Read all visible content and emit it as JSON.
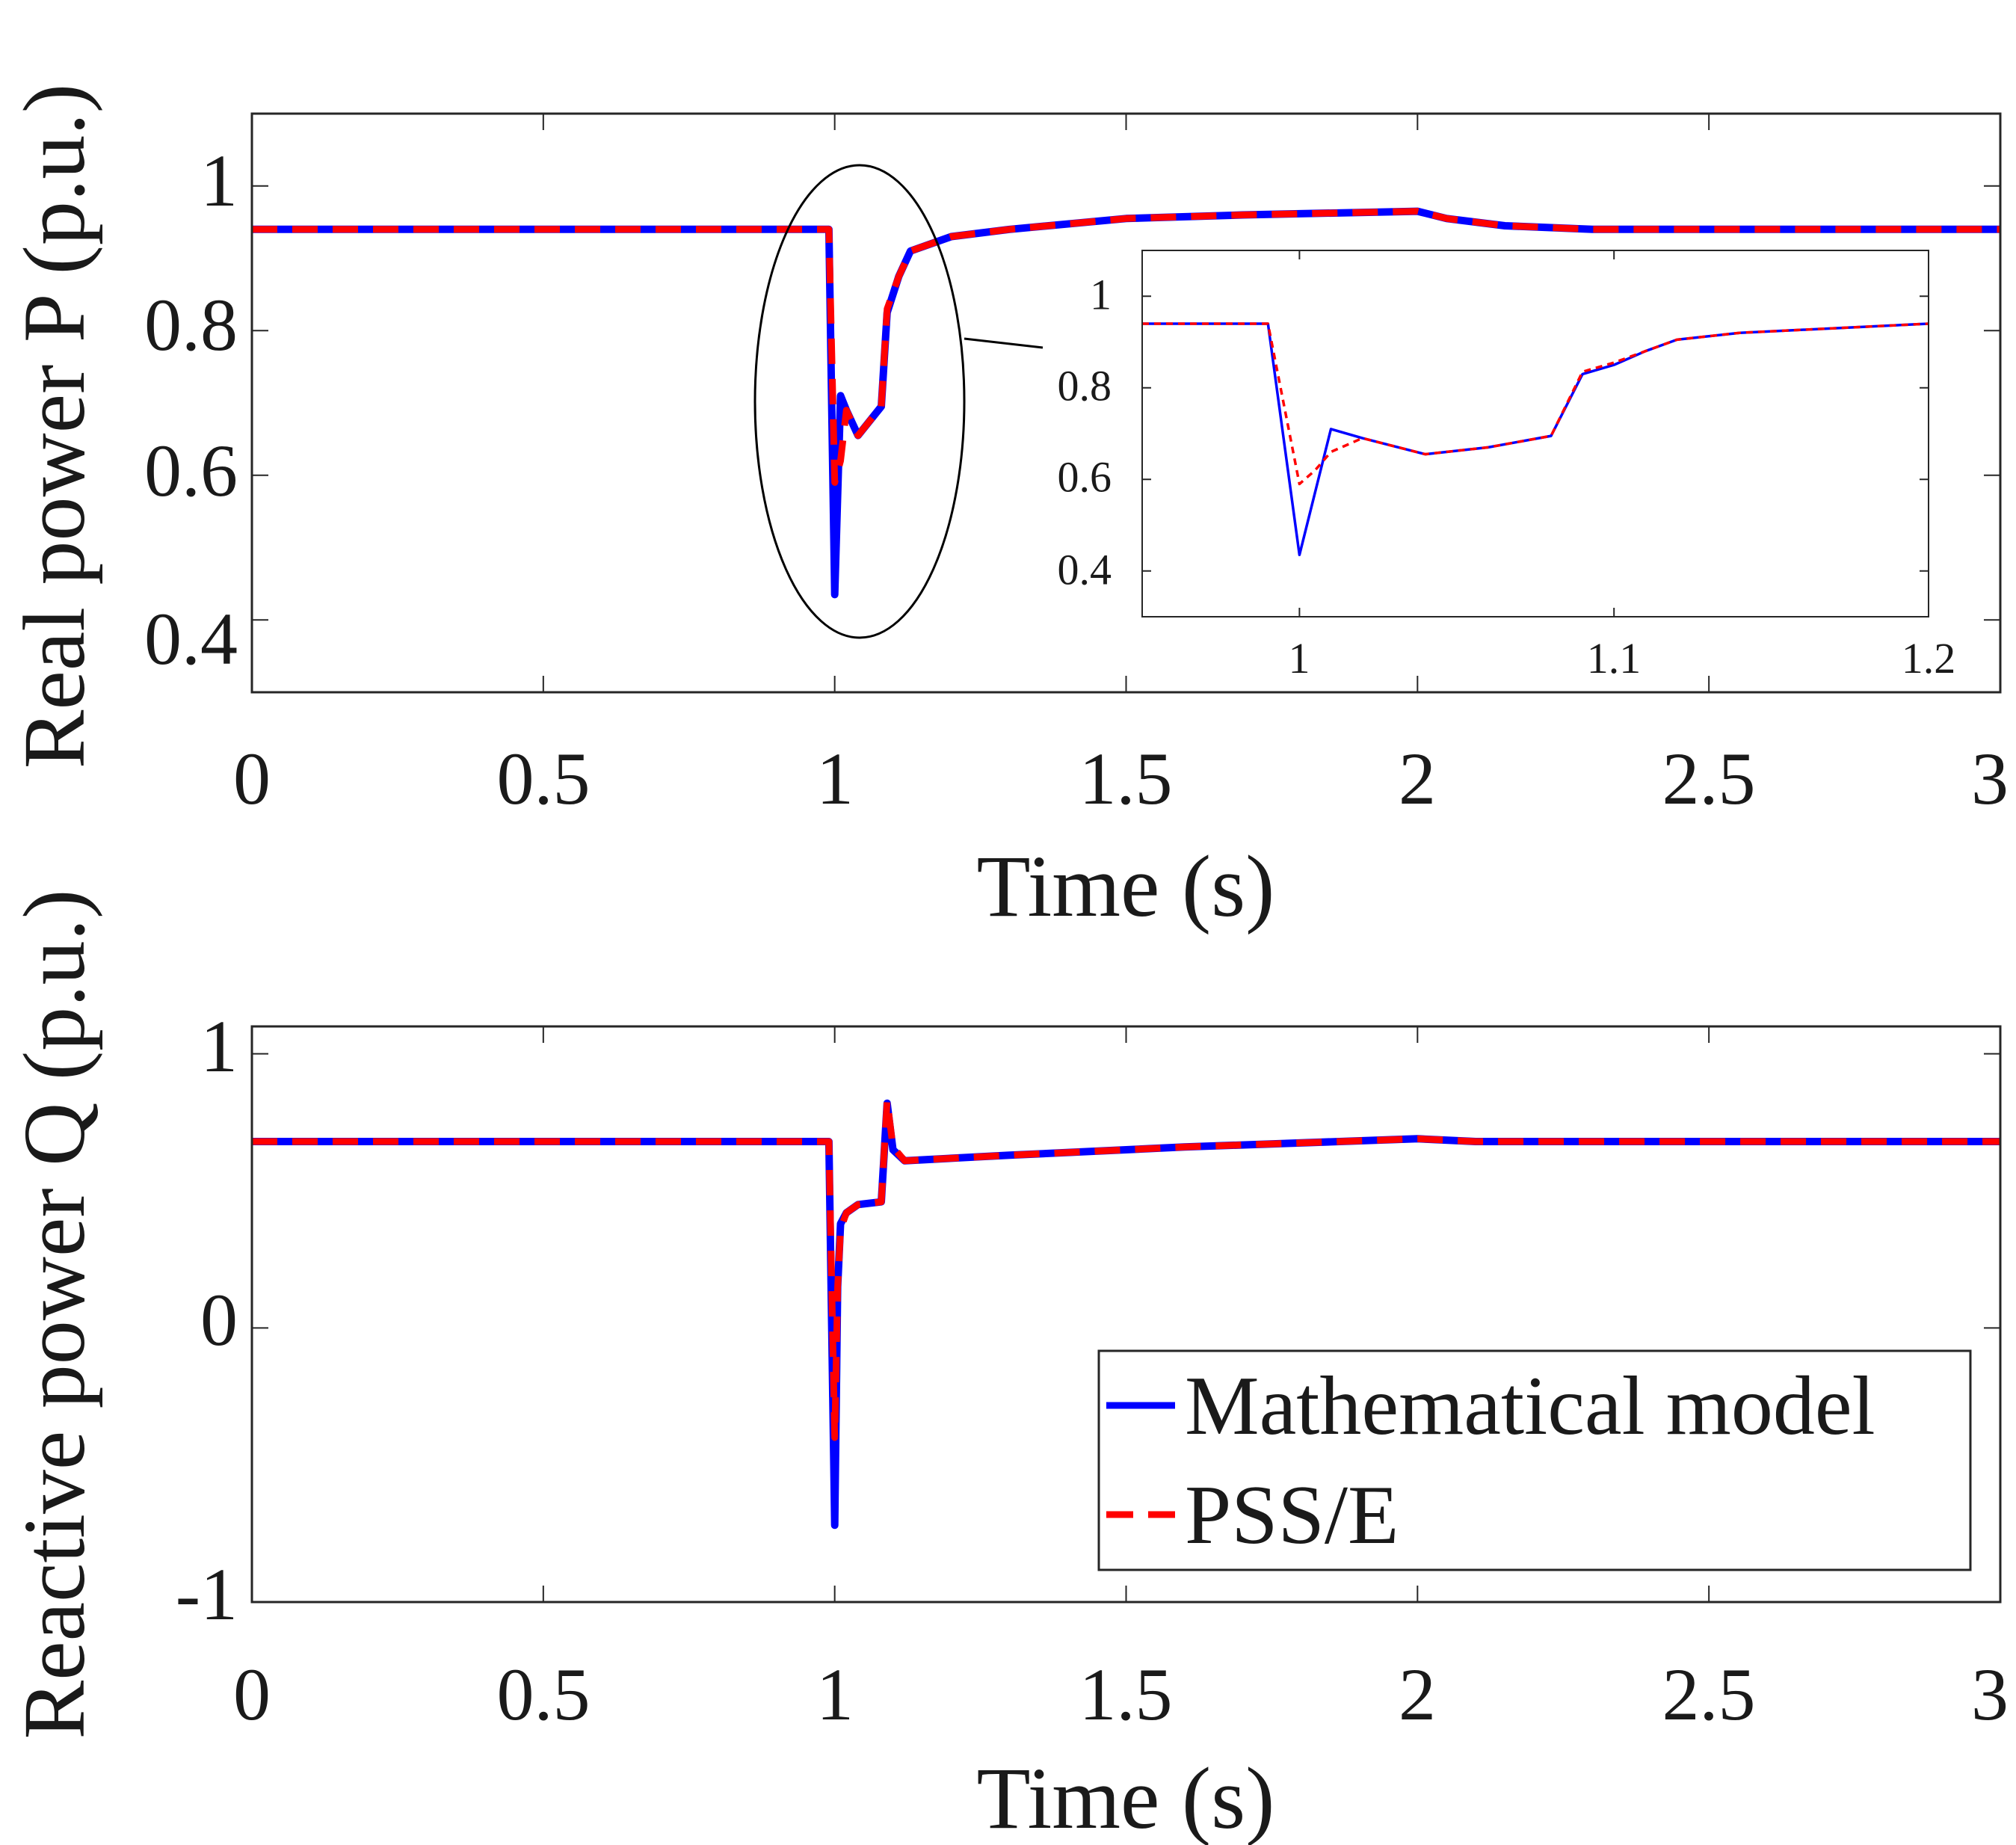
{
  "chart_data": [
    {
      "id": "real_power",
      "type": "line",
      "title": "",
      "xlabel": "Time (s)",
      "ylabel": "Real power P (p.u.)",
      "xlim": [
        0,
        3
      ],
      "ylim": [
        0.3,
        1.1
      ],
      "xticks": [
        0,
        0.5,
        1,
        1.5,
        2,
        2.5,
        3
      ],
      "xtick_labels": [
        "0",
        "0.5",
        "1",
        "1.5",
        "2",
        "2.5",
        "3"
      ],
      "yticks": [
        0.4,
        0.6,
        0.8,
        1
      ],
      "ytick_labels": [
        "0.4",
        "0.6",
        "0.8",
        "1"
      ],
      "series": [
        {
          "name": "Mathematical model",
          "color": "#0000ff",
          "style": "solid",
          "x": [
            0,
            0.99,
            1.0,
            1.01,
            1.02,
            1.04,
            1.08,
            1.09,
            1.11,
            1.13,
            1.2,
            1.3,
            1.5,
            1.7,
            2.0,
            2.05,
            2.15,
            2.3,
            2.5,
            3.0
          ],
          "y": [
            0.94,
            0.94,
            0.435,
            0.71,
            0.69,
            0.655,
            0.695,
            0.825,
            0.875,
            0.91,
            0.93,
            0.94,
            0.955,
            0.96,
            0.965,
            0.955,
            0.945,
            0.94,
            0.94,
            0.94
          ]
        },
        {
          "name": "PSS/E",
          "color": "#ff0000",
          "style": "dashed",
          "x": [
            0,
            0.99,
            1.0,
            1.01,
            1.02,
            1.04,
            1.08,
            1.09,
            1.11,
            1.13,
            1.2,
            1.3,
            1.5,
            1.7,
            2.0,
            2.05,
            2.15,
            2.3,
            2.5,
            3.0
          ],
          "y": [
            0.94,
            0.94,
            0.59,
            0.62,
            0.69,
            0.655,
            0.695,
            0.83,
            0.875,
            0.91,
            0.93,
            0.94,
            0.955,
            0.96,
            0.965,
            0.955,
            0.945,
            0.94,
            0.94,
            0.94
          ]
        }
      ],
      "inset": {
        "xlim": [
          0.95,
          1.2
        ],
        "ylim": [
          0.3,
          1.1
        ],
        "xticks": [
          1,
          1.1,
          1.2
        ],
        "xtick_labels": [
          "1",
          "1.1",
          "1.2"
        ],
        "yticks": [
          0.4,
          0.6,
          0.8,
          1
        ],
        "ytick_labels": [
          "0.4",
          "0.6",
          "0.8",
          "1"
        ],
        "series": [
          {
            "name": "Mathematical model",
            "color": "#0000ff",
            "style": "solid",
            "x": [
              0.95,
              0.99,
              1.0,
              1.01,
              1.02,
              1.04,
              1.06,
              1.08,
              1.09,
              1.1,
              1.11,
              1.12,
              1.14,
              1.17,
              1.2
            ],
            "y": [
              0.94,
              0.94,
              0.435,
              0.71,
              0.69,
              0.655,
              0.67,
              0.695,
              0.83,
              0.85,
              0.88,
              0.905,
              0.92,
              0.93,
              0.94
            ]
          },
          {
            "name": "PSS/E",
            "color": "#ff0000",
            "style": "dashed",
            "x": [
              0.95,
              0.99,
              1.0,
              1.005,
              1.01,
              1.02,
              1.04,
              1.06,
              1.08,
              1.09,
              1.1,
              1.11,
              1.12,
              1.14,
              1.17,
              1.2
            ],
            "y": [
              0.94,
              0.94,
              0.59,
              0.62,
              0.66,
              0.69,
              0.655,
              0.67,
              0.695,
              0.835,
              0.855,
              0.88,
              0.905,
              0.92,
              0.93,
              0.94
            ]
          }
        ]
      }
    },
    {
      "id": "reactive_power",
      "type": "line",
      "title": "",
      "xlabel": "Time (s)",
      "ylabel": "Reactive power Q (p.u.)",
      "xlim": [
        0,
        3
      ],
      "ylim": [
        -1,
        1.1
      ],
      "xticks": [
        0,
        0.5,
        1,
        1.5,
        2,
        2.5,
        3
      ],
      "xtick_labels": [
        "0",
        "0.5",
        "1",
        "1.5",
        "2",
        "2.5",
        "3"
      ],
      "yticks": [
        -1,
        0,
        1
      ],
      "ytick_labels": [
        "-1",
        "0",
        "1"
      ],
      "legend": {
        "location": "bottom-right",
        "entries": [
          "Mathematical model",
          "PSS/E"
        ]
      },
      "series": [
        {
          "name": "Mathematical model",
          "color": "#0000ff",
          "style": "solid",
          "x": [
            0,
            0.99,
            1.0,
            1.005,
            1.01,
            1.02,
            1.04,
            1.08,
            1.09,
            1.1,
            1.12,
            1.3,
            1.6,
            2.0,
            2.1,
            2.5,
            3.0
          ],
          "y": [
            0.68,
            0.68,
            -0.72,
            0.15,
            0.38,
            0.42,
            0.45,
            0.46,
            0.82,
            0.65,
            0.61,
            0.63,
            0.66,
            0.69,
            0.68,
            0.68,
            0.68
          ]
        },
        {
          "name": "PSS/E",
          "color": "#ff0000",
          "style": "dashed",
          "x": [
            0,
            0.99,
            1.0,
            1.005,
            1.01,
            1.02,
            1.04,
            1.08,
            1.09,
            1.1,
            1.12,
            1.3,
            1.6,
            2.0,
            2.1,
            2.5,
            3.0
          ],
          "y": [
            0.68,
            0.68,
            -0.4,
            0.15,
            0.36,
            0.42,
            0.45,
            0.46,
            0.83,
            0.66,
            0.61,
            0.63,
            0.66,
            0.69,
            0.68,
            0.68,
            0.68
          ]
        }
      ]
    }
  ]
}
